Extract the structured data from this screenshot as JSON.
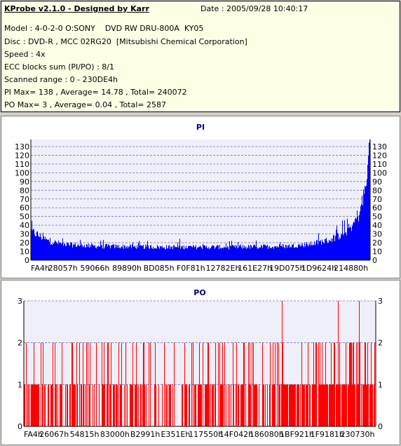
{
  "info": {
    "title": "KProbe v2.1.0 - Designed by Karr",
    "date": "Date : 2005/09/28 10:40:17",
    "model": "Model : 4-0-2-0 O:SONY    DVD RW DRU-800A  KY05",
    "disc": "Disc : DVD-R , MCC 02RG20  [Mitsubishi Chemical Corporation]",
    "speed": "Speed : 4x",
    "ecc": "ECC blocks sum (PI/PO) : 8/1",
    "range": "Scanned range : 0 - 230DE4h",
    "pi_stats": "PI Max= 138 , Average= 14.78 , Total= 240072",
    "po_stats": "PO Max= 3 , Average= 0.04 , Total= 2587"
  },
  "colors": {
    "info_bg": "#ffffe6",
    "plot_bg": "#efeffa",
    "pi_bar": "#0000ff",
    "po_bar": "#ff0000",
    "grid": "#7070b0",
    "title": "#000080"
  },
  "chart_data": [
    {
      "type": "bar",
      "title": "PI",
      "ylim": [
        0,
        138
      ],
      "yticks": [
        0,
        10,
        20,
        30,
        40,
        50,
        60,
        70,
        80,
        90,
        100,
        110,
        120,
        130
      ],
      "xticks": [
        "FA4h",
        "28057h",
        "59066h",
        "89890h",
        "BD085h",
        "F0F81h",
        "12782Eh",
        "161E27h",
        "19D075h",
        "1D9624h",
        "214880h"
      ],
      "grid": true,
      "profile": {
        "x": [
          0,
          0.02,
          0.05,
          0.1,
          0.2,
          0.4,
          0.6,
          0.75,
          0.82,
          0.88,
          0.92,
          0.95,
          0.97,
          0.99,
          1.0
        ],
        "y": [
          33,
          29,
          22,
          18,
          16,
          15,
          15,
          16,
          18,
          23,
          30,
          40,
          55,
          85,
          138
        ]
      }
    },
    {
      "type": "bar",
      "title": "PO",
      "ylim": [
        0,
        3
      ],
      "yticks": [
        0,
        1,
        2,
        3
      ],
      "xticks": [
        "FA4h",
        "26067h",
        "54815h",
        "83000h",
        "B2991h",
        "E351Eh",
        "117550h",
        "14F042h",
        "186080h",
        "1BF921h",
        "1F9181h",
        "230730h"
      ],
      "grid": true,
      "max": 3,
      "average": 0.04
    }
  ]
}
